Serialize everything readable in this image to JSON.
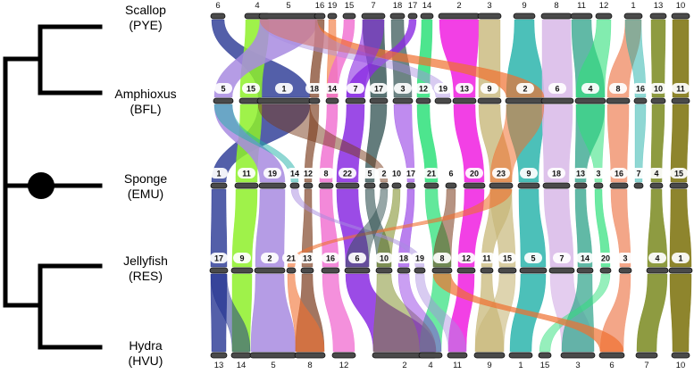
{
  "species": [
    {
      "name": "Scallop",
      "code": "(PYE)"
    },
    {
      "name": "Amphioxus",
      "code": "(BFL)"
    },
    {
      "name": "Sponge",
      "code": "(EMU)"
    },
    {
      "name": "Jellyfish",
      "code": "(RES)"
    },
    {
      "name": "Hydra",
      "code": "(HVU)"
    }
  ],
  "rows": [
    {
      "species": "Scallop",
      "labels": [
        "6",
        "4",
        "5",
        "16",
        "19",
        "15",
        "7",
        "18",
        "17",
        "14",
        "2",
        "3",
        "9",
        "8",
        "11",
        "12",
        "1",
        "13",
        "10"
      ]
    },
    {
      "species": "Amphioxus",
      "labels": [
        "5",
        "15",
        "1",
        "18",
        "14",
        "7",
        "17",
        "3",
        "12",
        "19",
        "13",
        "9",
        "2",
        "6",
        "4",
        "8",
        "16",
        "10",
        "11"
      ]
    },
    {
      "species": "Sponge",
      "labels": [
        "1",
        "11",
        "19",
        "14",
        "12",
        "8",
        "22",
        "5",
        "2",
        "10",
        "17",
        "21",
        "6",
        "20",
        "23",
        "9",
        "18",
        "13",
        "3",
        "16",
        "7",
        "4",
        "15"
      ]
    },
    {
      "species": "Jellyfish",
      "labels": [
        "17",
        "9",
        "2",
        "21",
        "13",
        "16",
        "6",
        "10",
        "18",
        "19",
        "8",
        "12",
        "11",
        "15",
        "5",
        "7",
        "14",
        "20",
        "3",
        "4",
        "1"
      ]
    },
    {
      "species": "Hydra",
      "labels": [
        "13",
        "14",
        "5",
        "8",
        "12",
        "2",
        "4",
        "11",
        "9",
        "1",
        "15",
        "3",
        "6",
        "7",
        "10"
      ]
    }
  ],
  "colors": {
    "navy": "#1a2a8c",
    "lime": "#8ef02a",
    "lavender": "#a88be0",
    "brown": "#7a3b1c",
    "pink": "#f06bd0",
    "purple": "#8a2be2",
    "darkteal": "#2f5050",
    "green": "#2ee07a",
    "magenta": "#f01ee0",
    "khaki": "#c8b87a",
    "teal": "#1fb0a8",
    "lilac": "#d8b8e8",
    "seagreen": "#3aa890",
    "salmon": "#f0906a",
    "olive": "#7a8a20",
    "darkolive": "#7a7008",
    "orange": "#f07030"
  }
}
